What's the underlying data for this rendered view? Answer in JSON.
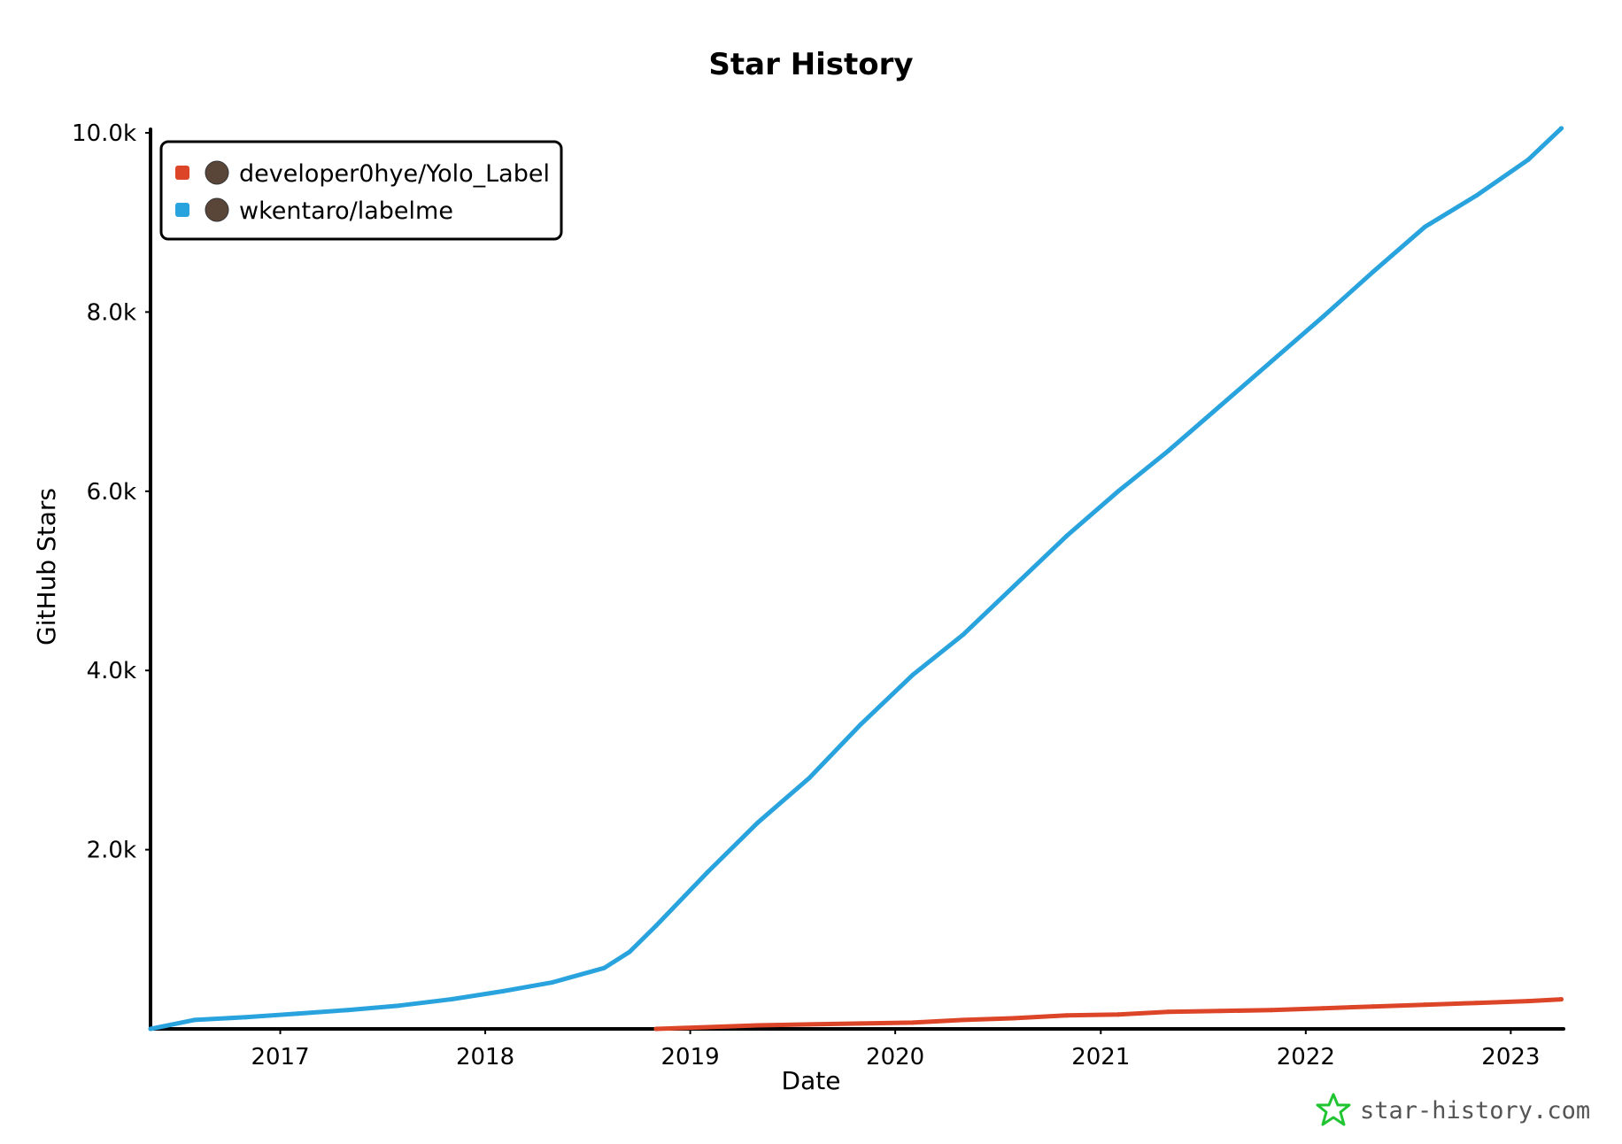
{
  "chart_data": {
    "type": "line",
    "title": "Star History",
    "xlabel": "Date",
    "ylabel": "GitHub Stars",
    "xlim": [
      "2016-05-15",
      "2023-04-05"
    ],
    "ylim": [
      0,
      10000
    ],
    "x_ticks": [
      "2017",
      "2018",
      "2019",
      "2020",
      "2021",
      "2022",
      "2023"
    ],
    "y_ticks": [
      "2.0k",
      "4.0k",
      "6.0k",
      "8.0k",
      "10.0k"
    ],
    "grid": false,
    "legend_position": "top-left",
    "series": [
      {
        "name": "developer0hye/Yolo_Label",
        "color": "#dd4528",
        "points": [
          [
            "2018-11-01",
            0
          ],
          [
            "2019-02-01",
            20
          ],
          [
            "2019-05-01",
            40
          ],
          [
            "2019-08-01",
            50
          ],
          [
            "2019-11-01",
            60
          ],
          [
            "2020-02-01",
            70
          ],
          [
            "2020-05-01",
            100
          ],
          [
            "2020-08-01",
            120
          ],
          [
            "2020-11-01",
            150
          ],
          [
            "2021-02-01",
            160
          ],
          [
            "2021-05-01",
            190
          ],
          [
            "2021-08-01",
            200
          ],
          [
            "2021-11-01",
            210
          ],
          [
            "2022-02-01",
            230
          ],
          [
            "2022-05-01",
            250
          ],
          [
            "2022-08-01",
            270
          ],
          [
            "2022-11-01",
            290
          ],
          [
            "2023-02-01",
            310
          ],
          [
            "2023-04-01",
            330
          ]
        ]
      },
      {
        "name": "wkentaro/labelme",
        "color": "#28a3dd",
        "points": [
          [
            "2016-05-15",
            0
          ],
          [
            "2016-08-01",
            100
          ],
          [
            "2016-11-01",
            130
          ],
          [
            "2017-02-01",
            170
          ],
          [
            "2017-05-01",
            210
          ],
          [
            "2017-08-01",
            260
          ],
          [
            "2017-11-01",
            330
          ],
          [
            "2018-02-01",
            420
          ],
          [
            "2018-05-01",
            520
          ],
          [
            "2018-08-01",
            680
          ],
          [
            "2018-09-15",
            860
          ],
          [
            "2018-11-01",
            1150
          ],
          [
            "2019-02-01",
            1750
          ],
          [
            "2019-05-01",
            2300
          ],
          [
            "2019-08-01",
            2800
          ],
          [
            "2019-11-01",
            3400
          ],
          [
            "2020-02-01",
            3950
          ],
          [
            "2020-05-01",
            4400
          ],
          [
            "2020-08-01",
            4950
          ],
          [
            "2020-11-01",
            5500
          ],
          [
            "2021-02-01",
            6000
          ],
          [
            "2021-05-01",
            6450
          ],
          [
            "2021-08-01",
            6950
          ],
          [
            "2021-11-01",
            7450
          ],
          [
            "2022-02-01",
            7950
          ],
          [
            "2022-05-01",
            8450
          ],
          [
            "2022-08-01",
            8950
          ],
          [
            "2022-11-01",
            9300
          ],
          [
            "2023-02-01",
            9700
          ],
          [
            "2023-04-01",
            10050
          ]
        ]
      }
    ]
  },
  "watermark": "star-history.com",
  "icons": {
    "legend_avatar": "avatar-icon",
    "watermark": "star-icon"
  }
}
